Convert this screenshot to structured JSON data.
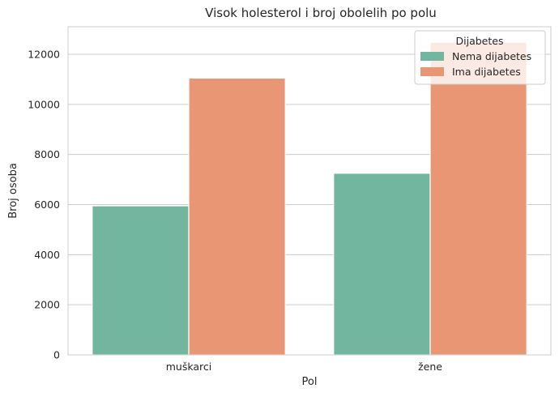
{
  "chart_data": {
    "type": "bar",
    "title": "Visok holesterol i broj obolelih po polu",
    "xlabel": "Pol",
    "ylabel": "Broj osoba",
    "categories": [
      "muškarci",
      "žene"
    ],
    "series": [
      {
        "name": "Nema dijabetes",
        "values": [
          5950,
          7250
        ],
        "color": "#72b6a0"
      },
      {
        "name": "Ima dijabetes",
        "values": [
          11050,
          12480
        ],
        "color": "#e99675"
      }
    ],
    "ylim": [
      0,
      13100
    ],
    "yticks": [
      0,
      2000,
      4000,
      6000,
      8000,
      10000,
      12000
    ],
    "grid": "y",
    "legend": {
      "title": "Dijabetes",
      "placement": "top-right"
    }
  }
}
